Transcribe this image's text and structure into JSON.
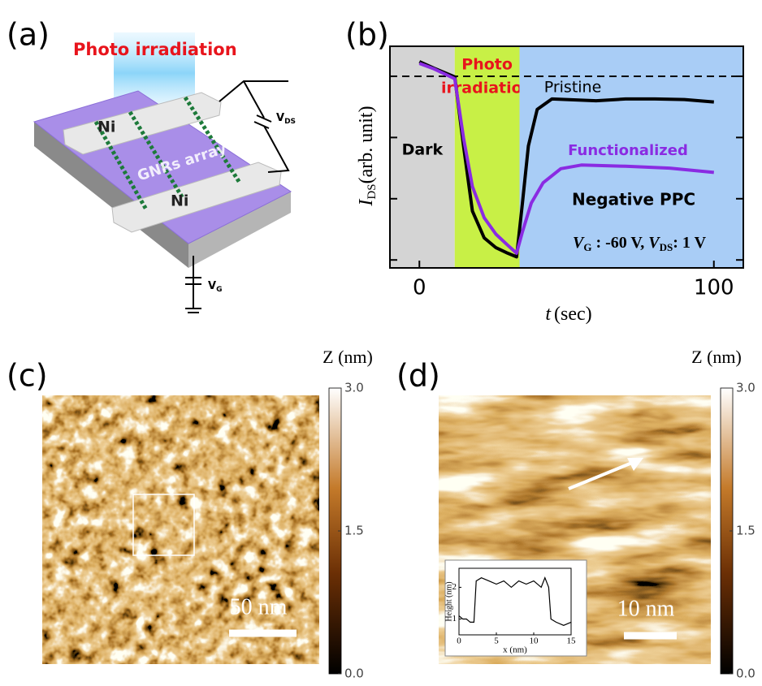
{
  "panels": [
    {
      "label": "(a)",
      "irradiation": "Photo irradiation",
      "electrodes": [
        "Ni",
        "Ni"
      ],
      "array": "GNRs array",
      "vds": {
        "symbol": "V",
        "sub": "DS"
      },
      "vg": {
        "symbol": "V",
        "sub": "G"
      }
    },
    {
      "label": "(b)",
      "chart_data": {
        "type": "line",
        "xlabel": {
          "symbol": "t",
          "unit": "(sec)"
        },
        "ylabel": {
          "symbol": "I",
          "sub": "DS",
          "unit": "(arb. unit)"
        },
        "xlim": [
          -10,
          110
        ],
        "ylim": [
          0.87,
          4.49
        ],
        "xticks": [
          0,
          100
        ],
        "yticks": [
          1,
          2,
          3,
          4
        ],
        "reference_line": 4,
        "regions": [
          {
            "lines": [
              "Dark"
            ],
            "start": -10,
            "end": 12,
            "color": "#d4d4d4",
            "label_color": "#000000"
          },
          {
            "lines": [
              "Photo",
              "irradiation"
            ],
            "start": 12,
            "end": 34,
            "color": "#c8f046",
            "label_color": "#e8141c"
          },
          {
            "start": 34,
            "end": 110,
            "color": "#a9cdf6"
          }
        ],
        "series": [
          {
            "name": "Pristine",
            "color": "#000000",
            "x": [
              0,
              5,
              12,
              15,
              18,
              22,
              26,
              30,
              33,
              35,
              37,
              40,
              45,
              50,
              60,
              70,
              80,
              90,
              100
            ],
            "values": [
              4.24,
              4.13,
              3.99,
              2.86,
              1.8,
              1.36,
              1.2,
              1.11,
              1.05,
              1.93,
              2.86,
              3.46,
              3.63,
              3.62,
              3.6,
              3.63,
              3.63,
              3.62,
              3.58
            ]
          },
          {
            "name": "Functionalized",
            "color": "#8a2be2",
            "x": [
              0,
              5,
              12,
              15,
              18,
              22,
              26,
              30,
              33,
              35,
              38,
              42,
              48,
              55,
              70,
              85,
              100
            ],
            "values": [
              4.21,
              4.12,
              3.96,
              2.99,
              2.2,
              1.69,
              1.42,
              1.24,
              1.11,
              1.46,
              1.93,
              2.26,
              2.49,
              2.55,
              2.53,
              2.5,
              2.43
            ]
          }
        ],
        "annotations": [
          "Negative PPC"
        ],
        "conditions": [
          {
            "symbol": "V",
            "sub": "G",
            "text": " : -60 V, "
          },
          {
            "symbol": "V",
            "sub": "DS",
            "text": ": 1 V"
          }
        ]
      }
    },
    {
      "label": "(c)",
      "scale_bar": "50 nm",
      "colorbar": {
        "title": "Z (nm)",
        "lim": [
          0,
          3
        ],
        "ticks": [
          {
            "value": 0,
            "label": "0.0"
          },
          {
            "value": 1.5,
            "label": "1.5"
          },
          {
            "value": 3,
            "label": "3.0"
          }
        ]
      }
    },
    {
      "label": "(d)",
      "scale_bar": "10 nm",
      "colorbar": {
        "title": "Z (nm)",
        "lim": [
          0,
          3
        ],
        "ticks": [
          {
            "value": 0,
            "label": "0.0"
          },
          {
            "value": 1.5,
            "label": "1.5"
          },
          {
            "value": 3,
            "label": "3.0"
          }
        ]
      },
      "inset": {
        "chart_data": {
          "type": "line",
          "xlabel": "x (nm)",
          "ylabel": "Height (nm)",
          "xlim": [
            0,
            15
          ],
          "ylim": [
            0.5,
            2.6
          ],
          "xticks": [
            0,
            5,
            10,
            15
          ],
          "yticks": [
            1,
            2
          ],
          "series": [
            {
              "color": "#000000",
              "x": [
                0,
                0.5,
                1,
                1.5,
                2,
                2.3,
                3,
                4,
                5,
                6,
                7,
                8,
                9,
                10,
                11,
                11.5,
                12,
                12.3,
                13,
                14,
                15
              ],
              "values": [
                1.1,
                1.0,
                1.0,
                0.9,
                0.9,
                2.2,
                2.3,
                2.2,
                2.1,
                2.2,
                2.0,
                2.2,
                2.1,
                2.2,
                2.0,
                2.3,
                2.0,
                1.0,
                0.9,
                0.8,
                0.9
              ]
            }
          ]
        }
      }
    }
  ]
}
